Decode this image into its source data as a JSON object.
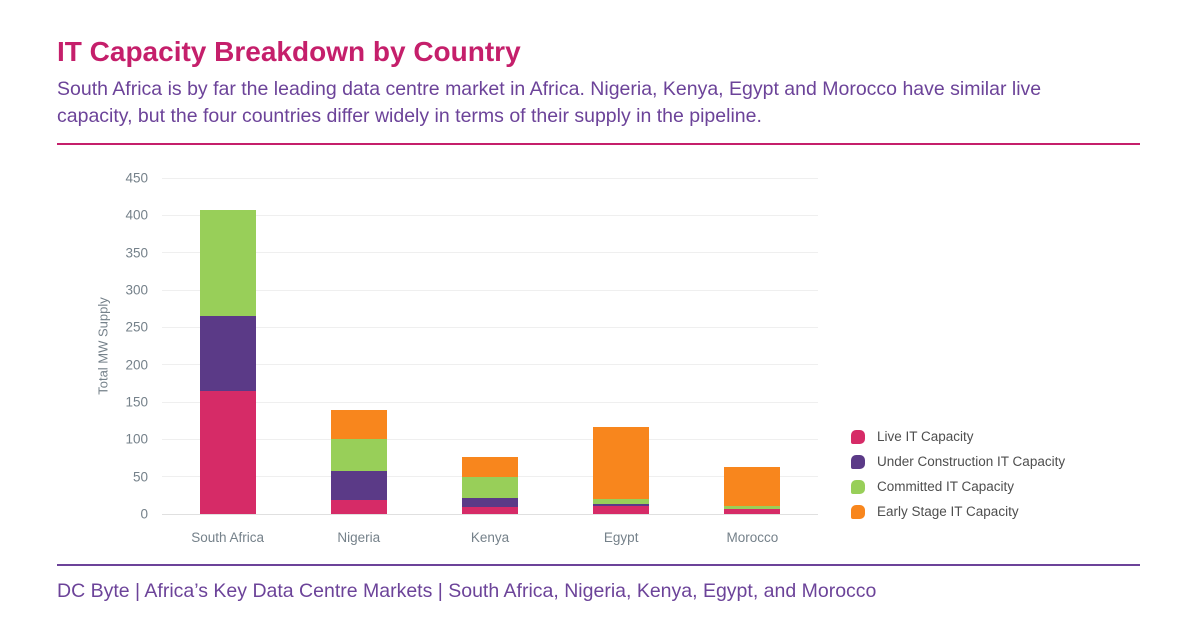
{
  "header": {
    "title": "IT Capacity Breakdown by Country",
    "subtitle": "South Africa is by far the leading data centre market in Africa. Nigeria, Kenya, Egypt and Morocco have similar live capacity, but the four countries differ widely in terms of their supply in the pipeline."
  },
  "footer": {
    "text": "DC Byte | Africa’s Key Data Centre Markets | South Africa, Nigeria, Kenya, Egypt, and Morocco"
  },
  "colors": {
    "title": "#C51F6B",
    "subtitle": "#6C4399",
    "footer": "#6C4399",
    "divider_top": "#C51F6B",
    "divider_bottom": "#6C4399",
    "live": "#D62B67",
    "under_construction": "#5B3A87",
    "committed": "#98CF59",
    "early_stage": "#F8861D",
    "axis_text": "#75818A",
    "gridline": "#EFEFEF",
    "legend_text": "#4E4E4E"
  },
  "chart_data": {
    "type": "bar",
    "stacked": true,
    "title": "IT Capacity Breakdown by Country",
    "xlabel": "",
    "ylabel": "Total MW Supply",
    "ylim": [
      0,
      450
    ],
    "ytick_step": 50,
    "grid": true,
    "legend_position": "right",
    "categories": [
      "South Africa",
      "Nigeria",
      "Kenya",
      "Egypt",
      "Morocco"
    ],
    "series": [
      {
        "name": "Live IT Capacity",
        "color_key": "live",
        "values": [
          165,
          19,
          9,
          11,
          7
        ]
      },
      {
        "name": "Under Construction IT Capacity",
        "color_key": "under_construction",
        "values": [
          100,
          38,
          12,
          3,
          0
        ]
      },
      {
        "name": "Committed IT Capacity",
        "color_key": "committed",
        "values": [
          142,
          44,
          28,
          6,
          4
        ]
      },
      {
        "name": "Early Stage IT Capacity",
        "color_key": "early_stage",
        "values": [
          0,
          39,
          27,
          97,
          52
        ]
      }
    ],
    "totals": {
      "South Africa": 407,
      "Nigeria": 140,
      "Kenya": 76,
      "Egypt": 117,
      "Morocco": 63
    }
  }
}
